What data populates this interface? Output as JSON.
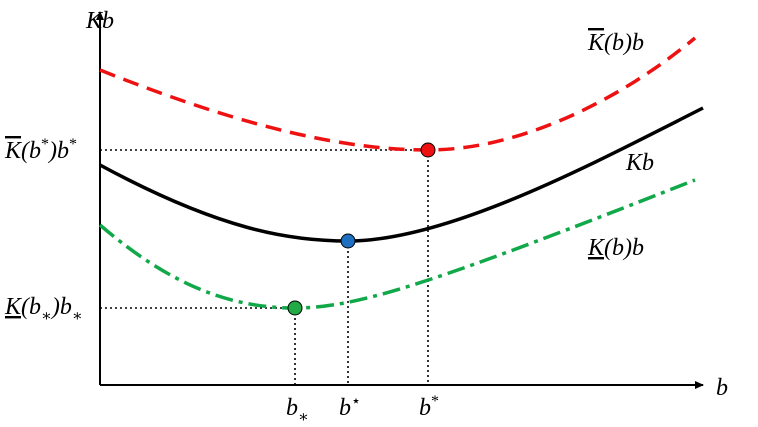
{
  "axes": {
    "y_label": [
      {
        "text": "Kb"
      }
    ],
    "x_label": [
      {
        "text": "b"
      }
    ]
  },
  "curve_labels": {
    "upper": [
      {
        "text": "K",
        "style": "overline"
      },
      {
        "text": "(b)b"
      }
    ],
    "middle": [
      {
        "text": "Kb"
      }
    ],
    "lower": [
      {
        "text": "K",
        "style": "underline"
      },
      {
        "text": "(b)b"
      }
    ]
  },
  "level_labels": {
    "upper": [
      {
        "text": "K",
        "style": "overline"
      },
      {
        "text": "(b"
      },
      {
        "text": "*",
        "style": "sup"
      },
      {
        "text": ")b"
      },
      {
        "text": "*",
        "style": "sup"
      }
    ],
    "lower": [
      {
        "text": "K",
        "style": "underline"
      },
      {
        "text": "(b"
      },
      {
        "text": "∗",
        "style": "sub"
      },
      {
        "text": ")b"
      },
      {
        "text": "∗",
        "style": "sub"
      }
    ]
  },
  "point_labels": {
    "lower_min": [
      {
        "text": "b"
      },
      {
        "text": "∗",
        "style": "sub"
      }
    ],
    "middle_min": [
      {
        "text": "b"
      },
      {
        "text": "⋆",
        "style": "sup"
      }
    ],
    "upper_min": [
      {
        "text": "b"
      },
      {
        "text": "*",
        "style": "sup"
      }
    ]
  }
}
